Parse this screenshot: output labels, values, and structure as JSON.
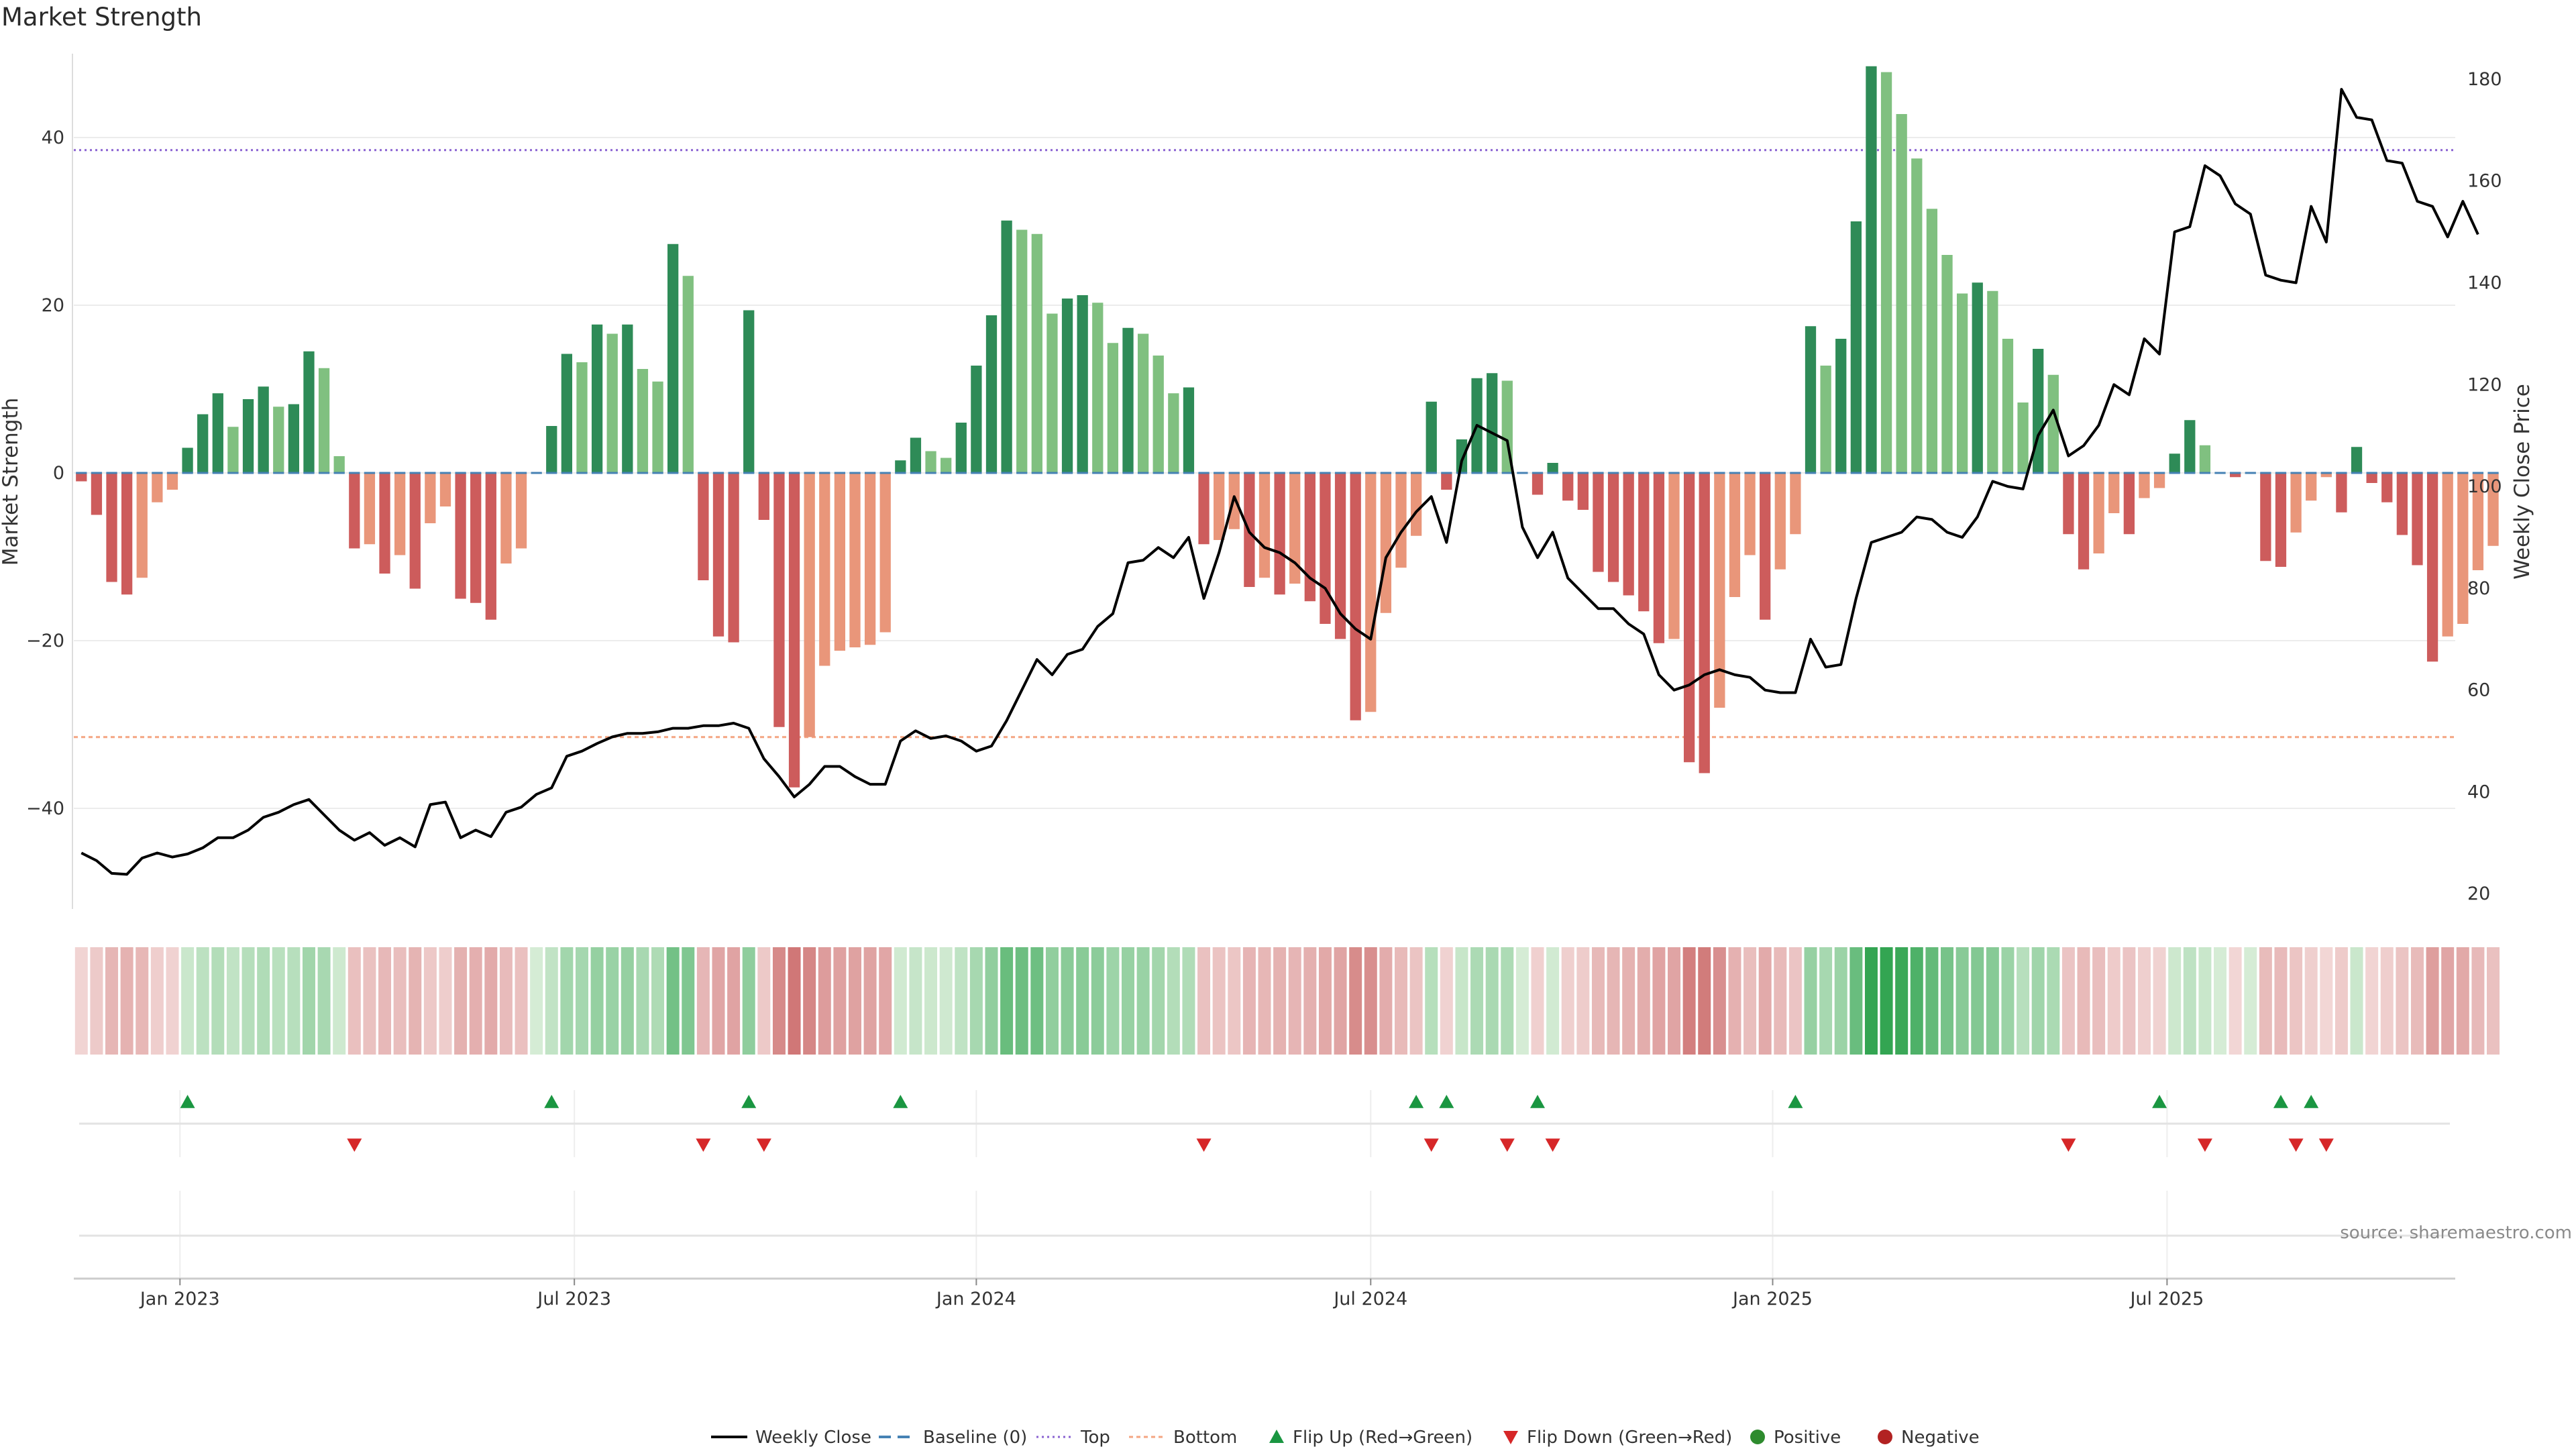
{
  "title": "Market Strength",
  "source": "source: sharemaestro.com",
  "colors": {
    "strong_up": "#2e8b57",
    "weak_up": "#80c080",
    "strong_down": "#cd5c5c",
    "weak_down": "#e9967a",
    "price": "#000000",
    "baseline": "#4682b4",
    "top": "#8a63d2",
    "bottom": "#f4a582",
    "flip_up": "#1a9641",
    "flip_down": "#d62728"
  },
  "chart_data": {
    "type": "bar",
    "title": "Market Strength",
    "ylabel": "Market Strength",
    "y2label": "Weekly Close Price",
    "ylim": [
      -52,
      50
    ],
    "y2lim": [
      17,
      185
    ],
    "yticks": [
      -40,
      -20,
      0,
      20,
      40
    ],
    "y2ticks": [
      20,
      40,
      60,
      80,
      100,
      120,
      140,
      160,
      180
    ],
    "xlim": [
      0,
      157
    ],
    "xticks": [
      {
        "label": "Jan 2023",
        "week": 7
      },
      {
        "label": "Jul 2023",
        "week": 33
      },
      {
        "label": "Jan 2024",
        "week": 59.5
      },
      {
        "label": "Jul 2024",
        "week": 85.5
      },
      {
        "label": "Jan 2025",
        "week": 112
      },
      {
        "label": "Jul 2025",
        "week": 138
      }
    ],
    "top_line": 38.5,
    "bottom_line": -31.5,
    "baseline": 0,
    "weeks": 157,
    "strength": [
      -1,
      -5,
      -13,
      -14.5,
      -12.5,
      -3.5,
      -2,
      3,
      7,
      9.5,
      5.5,
      8.8,
      10.3,
      7.9,
      8.2,
      14.5,
      12.5,
      2,
      -9,
      -8.5,
      -12,
      -9.8,
      -13.8,
      -6,
      -4,
      -15,
      -15.5,
      -17.5,
      -10.8,
      -9,
      0,
      5.6,
      14.2,
      13.2,
      17.7,
      16.6,
      17.7,
      12.4,
      10.9,
      27.3,
      23.5,
      -12.8,
      -19.5,
      -20.2,
      19.4,
      -5.6,
      -30.3,
      -37.5,
      -31.5,
      -23,
      -21.2,
      -20.8,
      -20.5,
      -19,
      1.5,
      4.2,
      2.6,
      1.8,
      6,
      12.8,
      18.8,
      30.1,
      29,
      28.5,
      19,
      20.8,
      21.2,
      20.3,
      15.5,
      17.3,
      16.6,
      14,
      9.5,
      10.2,
      -8.5,
      -8,
      -6.7,
      -13.6,
      -12.5,
      -14.5,
      -13.2,
      -15.3,
      -18,
      -19.8,
      -29.5,
      -28.5,
      -16.7,
      -11.3,
      -7.5,
      8.5,
      -2,
      4,
      11.3,
      11.9,
      11,
      0,
      -2.6,
      1.2,
      -3.3,
      -4.4,
      -11.8,
      -13,
      -14.6,
      -16.5,
      -20.3,
      -19.8,
      -34.5,
      -35.8,
      -28,
      -14.8,
      -9.8,
      -17.5,
      -11.5,
      -7.3,
      17.5,
      12.8,
      16,
      30,
      48.5,
      47.8,
      42.8,
      37.5,
      31.5,
      26,
      21.4,
      22.7,
      21.7,
      16,
      8.4,
      14.8,
      11.7,
      -7.3,
      -11.5,
      -9.6,
      -4.8,
      -7.3,
      -3,
      -1.8,
      2.3,
      6.3,
      3.3,
      0,
      -0.5,
      0,
      -10.5,
      -11.2,
      -7.1,
      -3.3,
      -0.5,
      -4.7,
      3.1,
      -1.2,
      -3.5,
      -7.4,
      -11,
      -22.5,
      -19.5,
      -18,
      -11.6,
      -8.7
    ],
    "price": [
      28,
      26.5,
      24,
      23.8,
      27,
      28,
      27.2,
      27.8,
      29,
      31,
      31,
      32.5,
      35,
      36,
      37.5,
      38.5,
      35.5,
      32.5,
      30.5,
      32,
      29.5,
      31,
      29.2,
      37.5,
      38,
      31,
      32.5,
      31.2,
      36,
      37,
      39.5,
      40.8,
      47,
      48,
      49.5,
      50.8,
      51.5,
      51.5,
      51.8,
      52.5,
      52.5,
      53,
      53,
      53.5,
      52.5,
      46.5,
      43,
      39,
      41.5,
      45,
      45,
      43,
      41.5,
      41.5,
      50,
      52,
      50.5,
      51,
      50,
      48,
      49,
      54,
      60,
      66,
      63,
      67,
      68,
      72.5,
      75,
      85,
      85.5,
      88,
      86,
      90,
      78,
      87,
      98,
      91,
      88,
      87,
      85,
      82,
      80,
      75,
      72,
      70,
      86,
      91,
      95,
      98,
      89,
      105,
      112,
      110.5,
      109,
      92,
      86,
      91,
      82,
      79,
      76,
      76,
      73,
      71,
      63,
      60,
      61,
      63,
      64,
      63,
      62.5,
      60,
      59.5,
      59.5,
      70,
      64.5,
      65,
      78,
      89,
      90,
      91,
      94,
      93.5,
      91,
      90,
      94,
      101,
      100,
      99.5,
      110,
      115,
      106,
      108,
      112,
      120,
      118,
      129,
      126,
      150,
      151,
      163,
      161,
      155.5,
      153.5,
      141.5,
      140.5,
      140,
      155,
      148,
      178,
      172.5,
      172,
      164,
      163.5,
      156,
      155,
      149,
      156,
      149.5
    ],
    "signal_strip_note": "strip cells use the same weekly strength values",
    "flips_up_week": [
      7,
      31,
      44,
      54,
      88,
      90,
      96,
      113,
      137,
      145,
      147
    ],
    "flips_down_week": [
      18,
      41,
      45,
      74,
      89,
      94,
      97,
      131,
      140,
      146,
      148
    ],
    "legend": [
      {
        "label": "Weekly Close",
        "kind": "line"
      },
      {
        "label": "Baseline (0)",
        "kind": "dash"
      },
      {
        "label": "Top",
        "kind": "dot"
      },
      {
        "label": "Bottom",
        "kind": "dot2"
      },
      {
        "label": "Flip Up (Red→Green)",
        "kind": "tri-up"
      },
      {
        "label": "Flip Down (Green→Red)",
        "kind": "tri-down"
      },
      {
        "label": "Positive",
        "kind": "circle-green"
      },
      {
        "label": "Negative",
        "kind": "circle-red"
      }
    ],
    "legend_position": "bottom-center"
  }
}
